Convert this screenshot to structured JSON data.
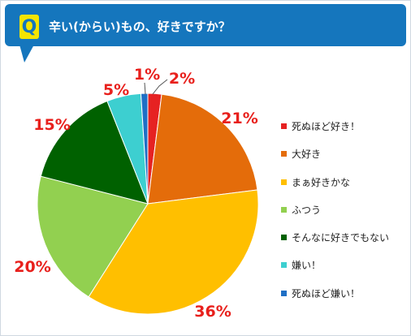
{
  "question": {
    "badge": "Q",
    "title": "辛い(からい)もの、好きですか？"
  },
  "colors": {
    "header_bg": "#1576bd",
    "badge_bg": "#f4e400",
    "label_text": "#e8201c"
  },
  "chart_data": {
    "type": "pie",
    "title": "",
    "series": [
      {
        "categories": [
          "死ぬほど好き！",
          "大好き",
          "まぁ好きかな",
          "ふつう",
          "そんなに好きでもない",
          "嫌い！",
          "死ぬほど嫌い！"
        ],
        "values": [
          2,
          21,
          36,
          20,
          15,
          5,
          1
        ],
        "labels": [
          "2%",
          "21%",
          "36%",
          "20%",
          "15%",
          "5%",
          "1%"
        ],
        "colors": [
          "#e62222",
          "#e46c0a",
          "#ffbf00",
          "#92d050",
          "#006100",
          "#3dcfd0",
          "#1f6fc5"
        ]
      }
    ],
    "legend": "right",
    "start_angle": "top",
    "direction": "clockwise"
  }
}
